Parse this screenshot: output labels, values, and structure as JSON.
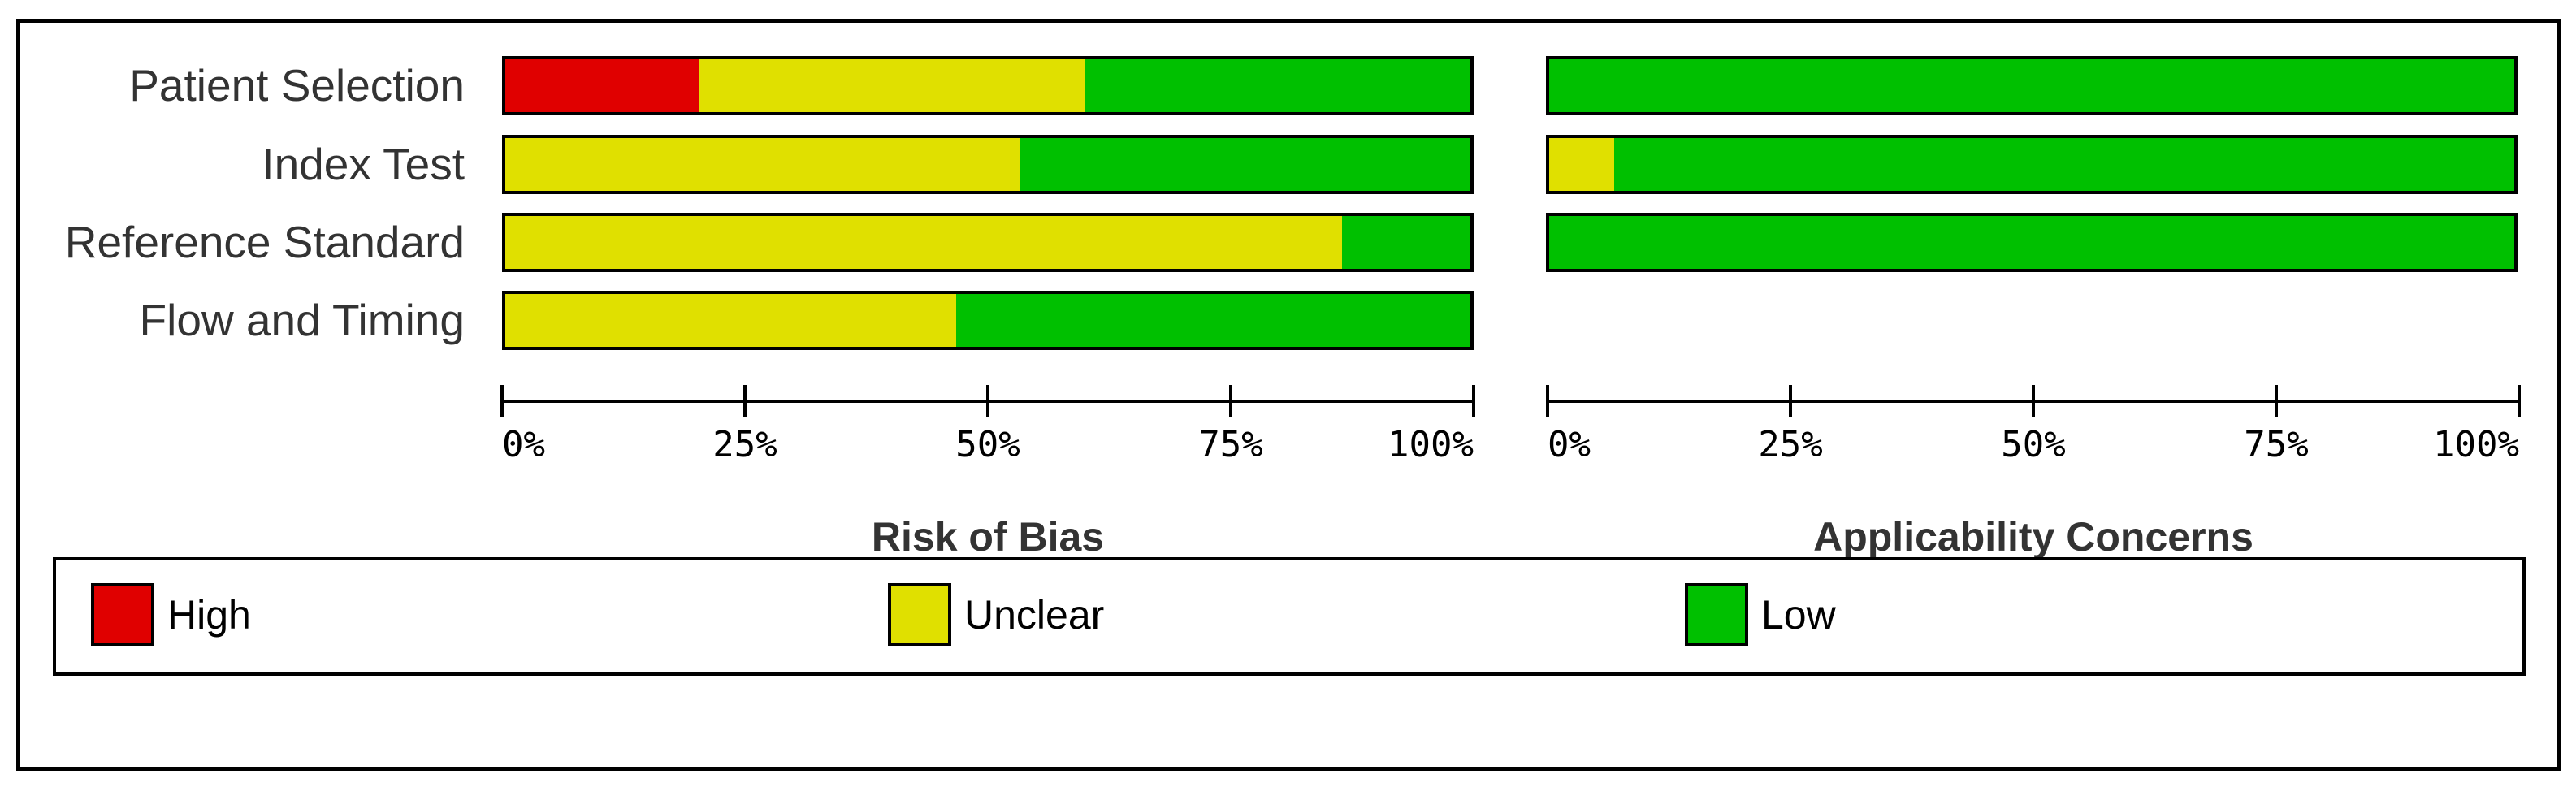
{
  "colors": {
    "high": "#E00000",
    "unclear": "#E0E000",
    "low": "#00C000"
  },
  "domains": [
    "Patient Selection",
    "Index Test",
    "Reference Standard",
    "Flow and Timing"
  ],
  "risk_of_bias": {
    "title": "Risk of Bias",
    "rows": [
      {
        "label": "Patient Selection",
        "high": 20,
        "unclear": 40,
        "low": 40
      },
      {
        "label": "Index Test",
        "high": 0,
        "unclear": 53.3,
        "low": 46.7
      },
      {
        "label": "Reference Standard",
        "high": 0,
        "unclear": 86.7,
        "low": 13.3
      },
      {
        "label": "Flow and Timing",
        "high": 0,
        "unclear": 46.7,
        "low": 53.3
      }
    ],
    "ticks": [
      "0%",
      "25%",
      "50%",
      "75%",
      "100%"
    ]
  },
  "applicability": {
    "title": "Applicability Concerns",
    "rows": [
      {
        "label": "Patient Selection",
        "high": 0,
        "unclear": 0,
        "low": 100
      },
      {
        "label": "Index Test",
        "high": 0,
        "unclear": 6.7,
        "low": 93.3
      },
      {
        "label": "Reference Standard",
        "high": 0,
        "unclear": 0,
        "low": 100
      }
    ],
    "ticks": [
      "0%",
      "25%",
      "50%",
      "75%",
      "100%"
    ]
  },
  "legend": {
    "items": [
      {
        "label": "High",
        "key": "high"
      },
      {
        "label": "Unclear",
        "key": "unclear"
      },
      {
        "label": "Low",
        "key": "low"
      }
    ]
  },
  "chart_data": [
    {
      "type": "bar",
      "orientation": "horizontal",
      "stacked": true,
      "title": "Risk of Bias",
      "categories": [
        "Patient Selection",
        "Index Test",
        "Reference Standard",
        "Flow and Timing"
      ],
      "series": [
        {
          "name": "High",
          "color": "#E00000",
          "values": [
            20,
            0,
            0,
            0
          ]
        },
        {
          "name": "Unclear",
          "color": "#E0E000",
          "values": [
            40,
            53.3,
            86.7,
            46.7
          ]
        },
        {
          "name": "Low",
          "color": "#00C000",
          "values": [
            40,
            46.7,
            13.3,
            53.3
          ]
        }
      ],
      "xlabel": "Risk of Bias",
      "ylabel": "",
      "xlim": [
        0,
        100
      ],
      "xticks": [
        "0%",
        "25%",
        "50%",
        "75%",
        "100%"
      ],
      "grid": false,
      "legend_position": "bottom"
    },
    {
      "type": "bar",
      "orientation": "horizontal",
      "stacked": true,
      "title": "Applicability Concerns",
      "categories": [
        "Patient Selection",
        "Index Test",
        "Reference Standard"
      ],
      "series": [
        {
          "name": "High",
          "color": "#E00000",
          "values": [
            0,
            0,
            0
          ]
        },
        {
          "name": "Unclear",
          "color": "#E0E000",
          "values": [
            0,
            6.7,
            0
          ]
        },
        {
          "name": "Low",
          "color": "#00C000",
          "values": [
            100,
            93.3,
            100
          ]
        }
      ],
      "xlabel": "Applicability Concerns",
      "ylabel": "",
      "xlim": [
        0,
        100
      ],
      "xticks": [
        "0%",
        "25%",
        "50%",
        "75%",
        "100%"
      ],
      "grid": false,
      "legend_position": "bottom"
    }
  ]
}
